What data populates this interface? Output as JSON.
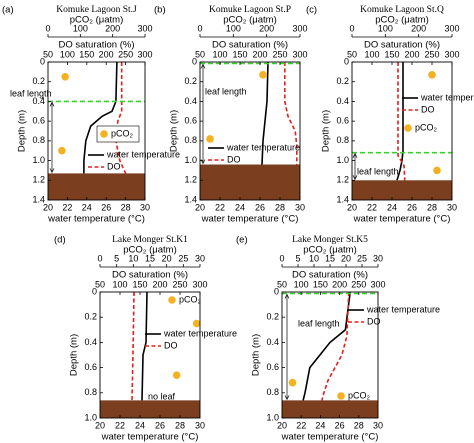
{
  "chart_data": [
    {
      "type": "profile",
      "label": "(a)",
      "title": "Komuke Lagoon St.J",
      "pco2_axis": {
        "label": "pCO₂ (μatm)",
        "xlim": [
          0,
          300
        ],
        "xticks": [
          0,
          100,
          200,
          300
        ]
      },
      "do_axis": {
        "label": "DO saturation (%)",
        "xlim": [
          50,
          300
        ],
        "xticks": [
          50,
          100,
          150,
          200,
          250,
          300
        ]
      },
      "xlabel": "water temperature (°C)",
      "xlim": [
        20,
        30
      ],
      "xticks": [
        20,
        22,
        24,
        26,
        28,
        30
      ],
      "ylabel": "Depth (m)",
      "ylim": [
        0,
        1.4
      ],
      "yticks": [
        0,
        0.2,
        0.4,
        0.6,
        0.8,
        {
          "value": 1,
          "label": "1.0"
        },
        1.2,
        1.4
      ],
      "series": [
        {
          "name": "water temperature",
          "color": "#000000",
          "values": [
            27.1,
            27.0,
            26.6,
            25.6,
            24.4,
            23.9,
            23.7,
            23.7
          ],
          "depth": [
            0,
            0.4,
            0.5,
            0.55,
            0.65,
            0.8,
            1.0,
            1.13
          ]
        },
        {
          "name": "DO",
          "color": "#e3201b",
          "axis": "do",
          "values": [
            240,
            240,
            230,
            225,
            235,
            250
          ],
          "depth": [
            0,
            0.5,
            0.6,
            0.8,
            1.0,
            1.13
          ]
        }
      ],
      "pco2": {
        "name": "pCO₂",
        "color": "#f4b223",
        "values": [
          53,
          43
        ],
        "depth": [
          0.15,
          0.9
        ]
      },
      "leaf_length": 0.4,
      "leaf_label": "leaf length",
      "sediment_depth": 1.13
    },
    {
      "type": "profile",
      "label": "(b)",
      "title": "Komuke Lagoon St.P",
      "pco2_axis": {
        "label": "pCO₂ (μatm)",
        "xlim": [
          0,
          300
        ],
        "xticks": [
          0,
          100,
          200,
          300
        ]
      },
      "do_axis": {
        "label": "DO saturation (%)",
        "xlim": [
          50,
          300
        ],
        "xticks": [
          50,
          100,
          150,
          200,
          250,
          300
        ]
      },
      "xlabel": "water temperature (°C)",
      "xlim": [
        20,
        30
      ],
      "xticks": [
        20,
        22,
        24,
        26,
        28,
        30
      ],
      "ylabel": "Depth (m)",
      "ylim": [
        0,
        1.4
      ],
      "yticks": [
        0,
        0.2,
        0.4,
        0.6,
        0.8,
        {
          "value": 1,
          "label": "1.0"
        },
        1.2,
        1.4
      ],
      "series": [
        {
          "name": "water temperature",
          "color": "#000000",
          "values": [
            26.8,
            26.7,
            26.5,
            26.3,
            26.2
          ],
          "depth": [
            0,
            0.4,
            0.6,
            0.8,
            1.04
          ]
        },
        {
          "name": "DO",
          "color": "#e3201b",
          "axis": "do",
          "values": [
            262,
            262,
            270,
            288,
            292,
            292
          ],
          "depth": [
            0,
            0.4,
            0.55,
            0.7,
            0.85,
            1.04
          ]
        }
      ],
      "pco2": {
        "color": "#f4b223",
        "values": [
          189,
          30
        ],
        "depth": [
          0.13,
          0.78
        ]
      },
      "leaf_length": 0,
      "leaf_label": "leaf length",
      "sediment_depth": 1.04
    },
    {
      "type": "profile",
      "label": "(c)",
      "title": "Komuke Lagoon St.Q",
      "pco2_axis": {
        "label": "pCO₂ (μatm)",
        "xlim": [
          0,
          300
        ],
        "xticks": [
          0,
          100,
          200,
          300
        ]
      },
      "do_axis": {
        "label": "DO saturation (%)",
        "xlim": [
          50,
          300
        ],
        "xticks": [
          50,
          100,
          150,
          200,
          250,
          300
        ]
      },
      "xlabel": "water temperature (°C)",
      "xlim": [
        20,
        30
      ],
      "xticks": [
        20,
        22,
        24,
        26,
        28,
        30
      ],
      "ylabel": "Depth (m)",
      "ylim": [
        0,
        1.4
      ],
      "yticks": [
        0,
        0.2,
        0.4,
        0.6,
        0.8,
        {
          "value": 1,
          "label": "1.0"
        },
        1.2,
        1.4
      ],
      "series": [
        {
          "name": "water temperature",
          "color": "#000000",
          "values": [
            25.1,
            25.1,
            25.0,
            24.8,
            24.5
          ],
          "depth": [
            0,
            0.9,
            1.0,
            1.1,
            1.2
          ]
        },
        {
          "name": "DO",
          "color": "#e3201b",
          "axis": "do",
          "values": [
            165,
            165,
            180,
            182
          ],
          "depth": [
            0,
            0.95,
            1.05,
            1.2
          ]
        }
      ],
      "pco2": {
        "name": "pCO₂",
        "color": "#f4b223",
        "values": [
          240,
          255
        ],
        "depth": [
          0.13,
          1.1
        ]
      },
      "leaf_length": 0.92,
      "leaf_label": "leaf length",
      "sediment_depth": 1.2
    },
    {
      "type": "profile",
      "label": "(d)",
      "title": "Lake Monger St.K1",
      "pco2_axis": {
        "label": "pCO₂ (μatm)",
        "xlim": [
          0,
          30
        ],
        "xticks": [
          0,
          5,
          10,
          15,
          20,
          25,
          30
        ]
      },
      "do_axis": {
        "label": "DO saturation (%)",
        "xlim": [
          50,
          300
        ],
        "xticks": [
          50,
          100,
          150,
          200,
          250,
          300
        ]
      },
      "xlabel": "water temperature (°C)",
      "xlim": [
        20,
        30
      ],
      "xticks": [
        20,
        22,
        24,
        26,
        28,
        30
      ],
      "ylabel": "Depth (m)",
      "ylim": [
        0,
        1
      ],
      "yticks": [
        0,
        0.2,
        0.4,
        0.6,
        0.8,
        {
          "value": 1,
          "label": "1.0"
        }
      ],
      "series": [
        {
          "name": "water temperature",
          "color": "#000000",
          "values": [
            24.7,
            24.6,
            24.3,
            24.2
          ],
          "depth": [
            0,
            0.4,
            0.5,
            0.86
          ]
        },
        {
          "name": "DO",
          "color": "#e3201b",
          "axis": "do",
          "values": [
            135,
            133,
            130
          ],
          "depth": [
            0,
            0.4,
            0.86
          ]
        }
      ],
      "pco2": {
        "name": "pCO₂",
        "color": "#f4b223",
        "values": [
          29,
          23
        ],
        "depth": [
          0.25,
          0.66
        ]
      },
      "annotation": "no leaf",
      "sediment_depth": 0.86
    },
    {
      "type": "profile",
      "label": "(e)",
      "title": "Lake Monger St.K5",
      "pco2_axis": {
        "label": "pCO₂ (μatm)",
        "xlim": [
          0,
          30
        ],
        "xticks": [
          0,
          5,
          10,
          15,
          20,
          25,
          30
        ]
      },
      "do_axis": {
        "label": "DO saturation (%)",
        "xlim": [
          50,
          300
        ],
        "xticks": [
          50,
          100,
          150,
          200,
          250,
          300
        ]
      },
      "xlabel": "water temperature (°C)",
      "xlim": [
        20,
        30
      ],
      "xticks": [
        20,
        22,
        24,
        26,
        28,
        30
      ],
      "ylabel": "Depth (m)",
      "ylim": [
        0,
        1
      ],
      "yticks": [
        0,
        0.2,
        0.4,
        0.6,
        0.8,
        {
          "value": 1,
          "label": "1.0"
        }
      ],
      "series": [
        {
          "name": "water temperature",
          "color": "#000000",
          "values": [
            27.1,
            26.6,
            25.0,
            22.9,
            22.4,
            22.2
          ],
          "depth": [
            0,
            0.3,
            0.4,
            0.6,
            0.8,
            0.86
          ]
        },
        {
          "name": "DO",
          "color": "#e3201b",
          "axis": "do",
          "values": [
            224,
            219,
            206,
            188,
            170,
            159,
            154
          ],
          "depth": [
            0,
            0.35,
            0.5,
            0.6,
            0.7,
            0.8,
            0.86
          ]
        }
      ],
      "pco2": {
        "name": "pCO₂",
        "color": "#f4b223",
        "values": [
          3.3
        ],
        "depth": [
          0.72
        ]
      },
      "leaf_length": 0,
      "leaf_label": "leaf length",
      "sediment_depth": 0.86
    }
  ]
}
